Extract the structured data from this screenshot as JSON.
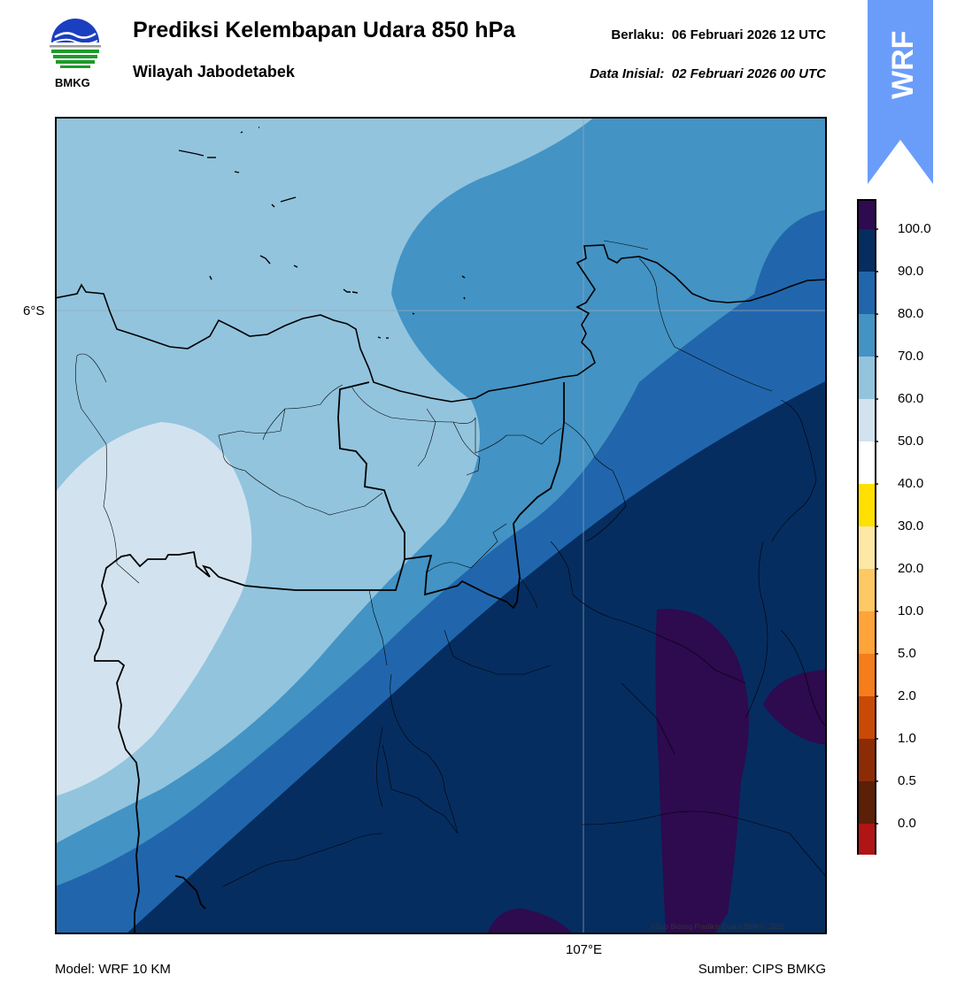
{
  "header": {
    "title": "Prediksi Kelembapan Udara 850 hPa",
    "subtitle": "Wilayah Jabodetabek",
    "valid_label": "Berlaku:",
    "valid_time": "06 Februari 2026 12 UTC",
    "init_label": "Data Inisial:",
    "init_time": "02 Februari 2026 00 UTC"
  },
  "logo": {
    "text": "BMKG",
    "icon": "bmkg-logo"
  },
  "badge": {
    "text": "WRF",
    "color": "#6a9dfa"
  },
  "map": {
    "lat_tick": "6°S",
    "lon_tick": "107°E",
    "credit": "©Sub Bidang Prediksi Cuaca BMKG, 2020",
    "field_colors": {
      "50-60": "#d2e3ef",
      "60-70": "#92c4de",
      "70-80": "#4393c4",
      "80-90": "#2166ac",
      "90-100": "#062d60",
      "100+": "#2e0a4f"
    }
  },
  "colorbar": {
    "labels": [
      "100.0",
      "90.0",
      "80.0",
      "70.0",
      "60.0",
      "50.0",
      "40.0",
      "30.0",
      "20.0",
      "10.0",
      "5.0",
      "2.0",
      "1.0",
      "0.5",
      "0.0"
    ],
    "colors": [
      "#2e0a4f",
      "#062d60",
      "#2166ac",
      "#4393c4",
      "#92c4de",
      "#d2e3ef",
      "#ffffff",
      "#ffe000",
      "#fee8a6",
      "#fec964",
      "#fea43a",
      "#f57d1c",
      "#c94a06",
      "#8c2c06",
      "#5c1f08",
      "#b01414",
      "#e8413a"
    ]
  },
  "footer": {
    "model": "Model: WRF 10 KM",
    "source": "Sumber: CIPS BMKG"
  }
}
